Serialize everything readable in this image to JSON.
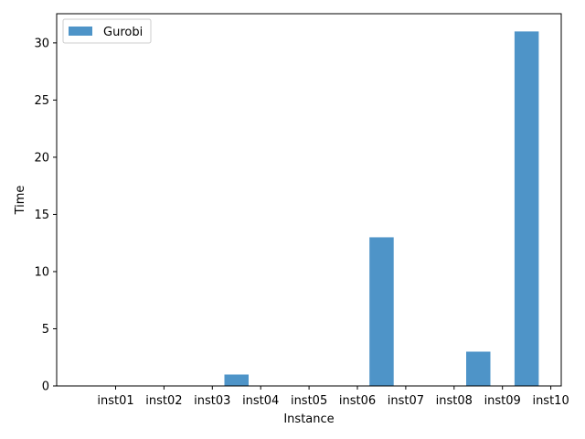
{
  "chart_data": {
    "type": "bar",
    "categories": [
      "inst01",
      "inst02",
      "inst03",
      "inst04",
      "inst05",
      "inst06",
      "inst07",
      "inst08",
      "inst09",
      "inst10"
    ],
    "series": [
      {
        "name": "Gurobi",
        "values": [
          0,
          0,
          0,
          1,
          0,
          0,
          13,
          0,
          3,
          31
        ],
        "color": "#4e94c8"
      }
    ],
    "xlabel": "Instance",
    "ylabel": "Time",
    "ylim": [
      0,
      32.55
    ],
    "yticks": [
      0,
      5,
      10,
      15,
      20,
      25,
      30
    ],
    "grid": false,
    "legend_position": "top-left"
  }
}
